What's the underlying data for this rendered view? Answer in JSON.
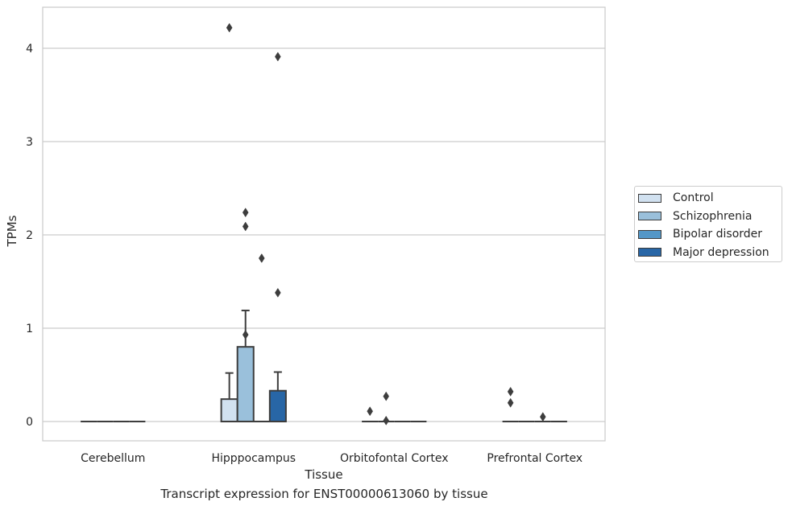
{
  "chart_data": {
    "type": "box",
    "title": "",
    "caption": "Transcript expression for ENST00000613060 by tissue",
    "xlabel": "Tissue",
    "ylabel": "TPMs",
    "ylim": [
      -0.2,
      4.45
    ],
    "yticks": [
      0,
      1,
      2,
      3,
      4
    ],
    "grid": "horizontal",
    "legend_position": "right",
    "categories": [
      "Cerebellum",
      "Hipppocampus",
      "Orbitofontal Cortex",
      "Prefrontal Cortex"
    ],
    "series": [
      {
        "name": "Control",
        "color": "#d1e1f0",
        "boxes": [
          {
            "q1": 0,
            "median": 0,
            "q3": 0,
            "whisker_low": 0,
            "whisker_high": 0,
            "outliers": []
          },
          {
            "q1": 0,
            "median": 0,
            "q3": 0.24,
            "whisker_low": 0,
            "whisker_high": 0.52,
            "outliers": [
              4.22
            ]
          },
          {
            "q1": 0,
            "median": 0,
            "q3": 0,
            "whisker_low": 0,
            "whisker_high": 0,
            "outliers": [
              0.11
            ]
          },
          {
            "q1": 0,
            "median": 0,
            "q3": 0,
            "whisker_low": 0,
            "whisker_high": 0,
            "outliers": [
              0.32,
              0.2
            ]
          }
        ]
      },
      {
        "name": "Schizophrenia",
        "color": "#9ac0db",
        "boxes": [
          {
            "q1": 0,
            "median": 0,
            "q3": 0,
            "whisker_low": 0,
            "whisker_high": 0,
            "outliers": []
          },
          {
            "q1": 0,
            "median": 0,
            "q3": 0.8,
            "whisker_low": 0,
            "whisker_high": 1.19,
            "outliers": [
              2.24,
              2.09,
              0.93
            ]
          },
          {
            "q1": 0,
            "median": 0,
            "q3": 0,
            "whisker_low": 0,
            "whisker_high": 0,
            "outliers": [
              0.27,
              0.01
            ]
          },
          {
            "q1": 0,
            "median": 0,
            "q3": 0,
            "whisker_low": 0,
            "whisker_high": 0,
            "outliers": []
          }
        ]
      },
      {
        "name": "Bipolar disorder",
        "color": "#5497c7",
        "boxes": [
          {
            "q1": 0,
            "median": 0,
            "q3": 0,
            "whisker_low": 0,
            "whisker_high": 0,
            "outliers": []
          },
          {
            "q1": 0,
            "median": 0,
            "q3": 0,
            "whisker_low": 0,
            "whisker_high": 0,
            "outliers": [
              1.75
            ]
          },
          {
            "q1": 0,
            "median": 0,
            "q3": 0,
            "whisker_low": 0,
            "whisker_high": 0,
            "outliers": []
          },
          {
            "q1": 0,
            "median": 0,
            "q3": 0,
            "whisker_low": 0,
            "whisker_high": 0,
            "outliers": [
              0.05
            ]
          }
        ]
      },
      {
        "name": "Major depression",
        "color": "#2866a6",
        "boxes": [
          {
            "q1": 0,
            "median": 0,
            "q3": 0,
            "whisker_low": 0,
            "whisker_high": 0,
            "outliers": []
          },
          {
            "q1": 0,
            "median": 0,
            "q3": 0.33,
            "whisker_low": 0,
            "whisker_high": 0.53,
            "outliers": [
              3.91,
              1.38
            ]
          },
          {
            "q1": 0,
            "median": 0,
            "q3": 0,
            "whisker_low": 0,
            "whisker_high": 0,
            "outliers": []
          },
          {
            "q1": 0,
            "median": 0,
            "q3": 0,
            "whisker_low": 0,
            "whisker_high": 0,
            "outliers": []
          }
        ]
      }
    ]
  }
}
